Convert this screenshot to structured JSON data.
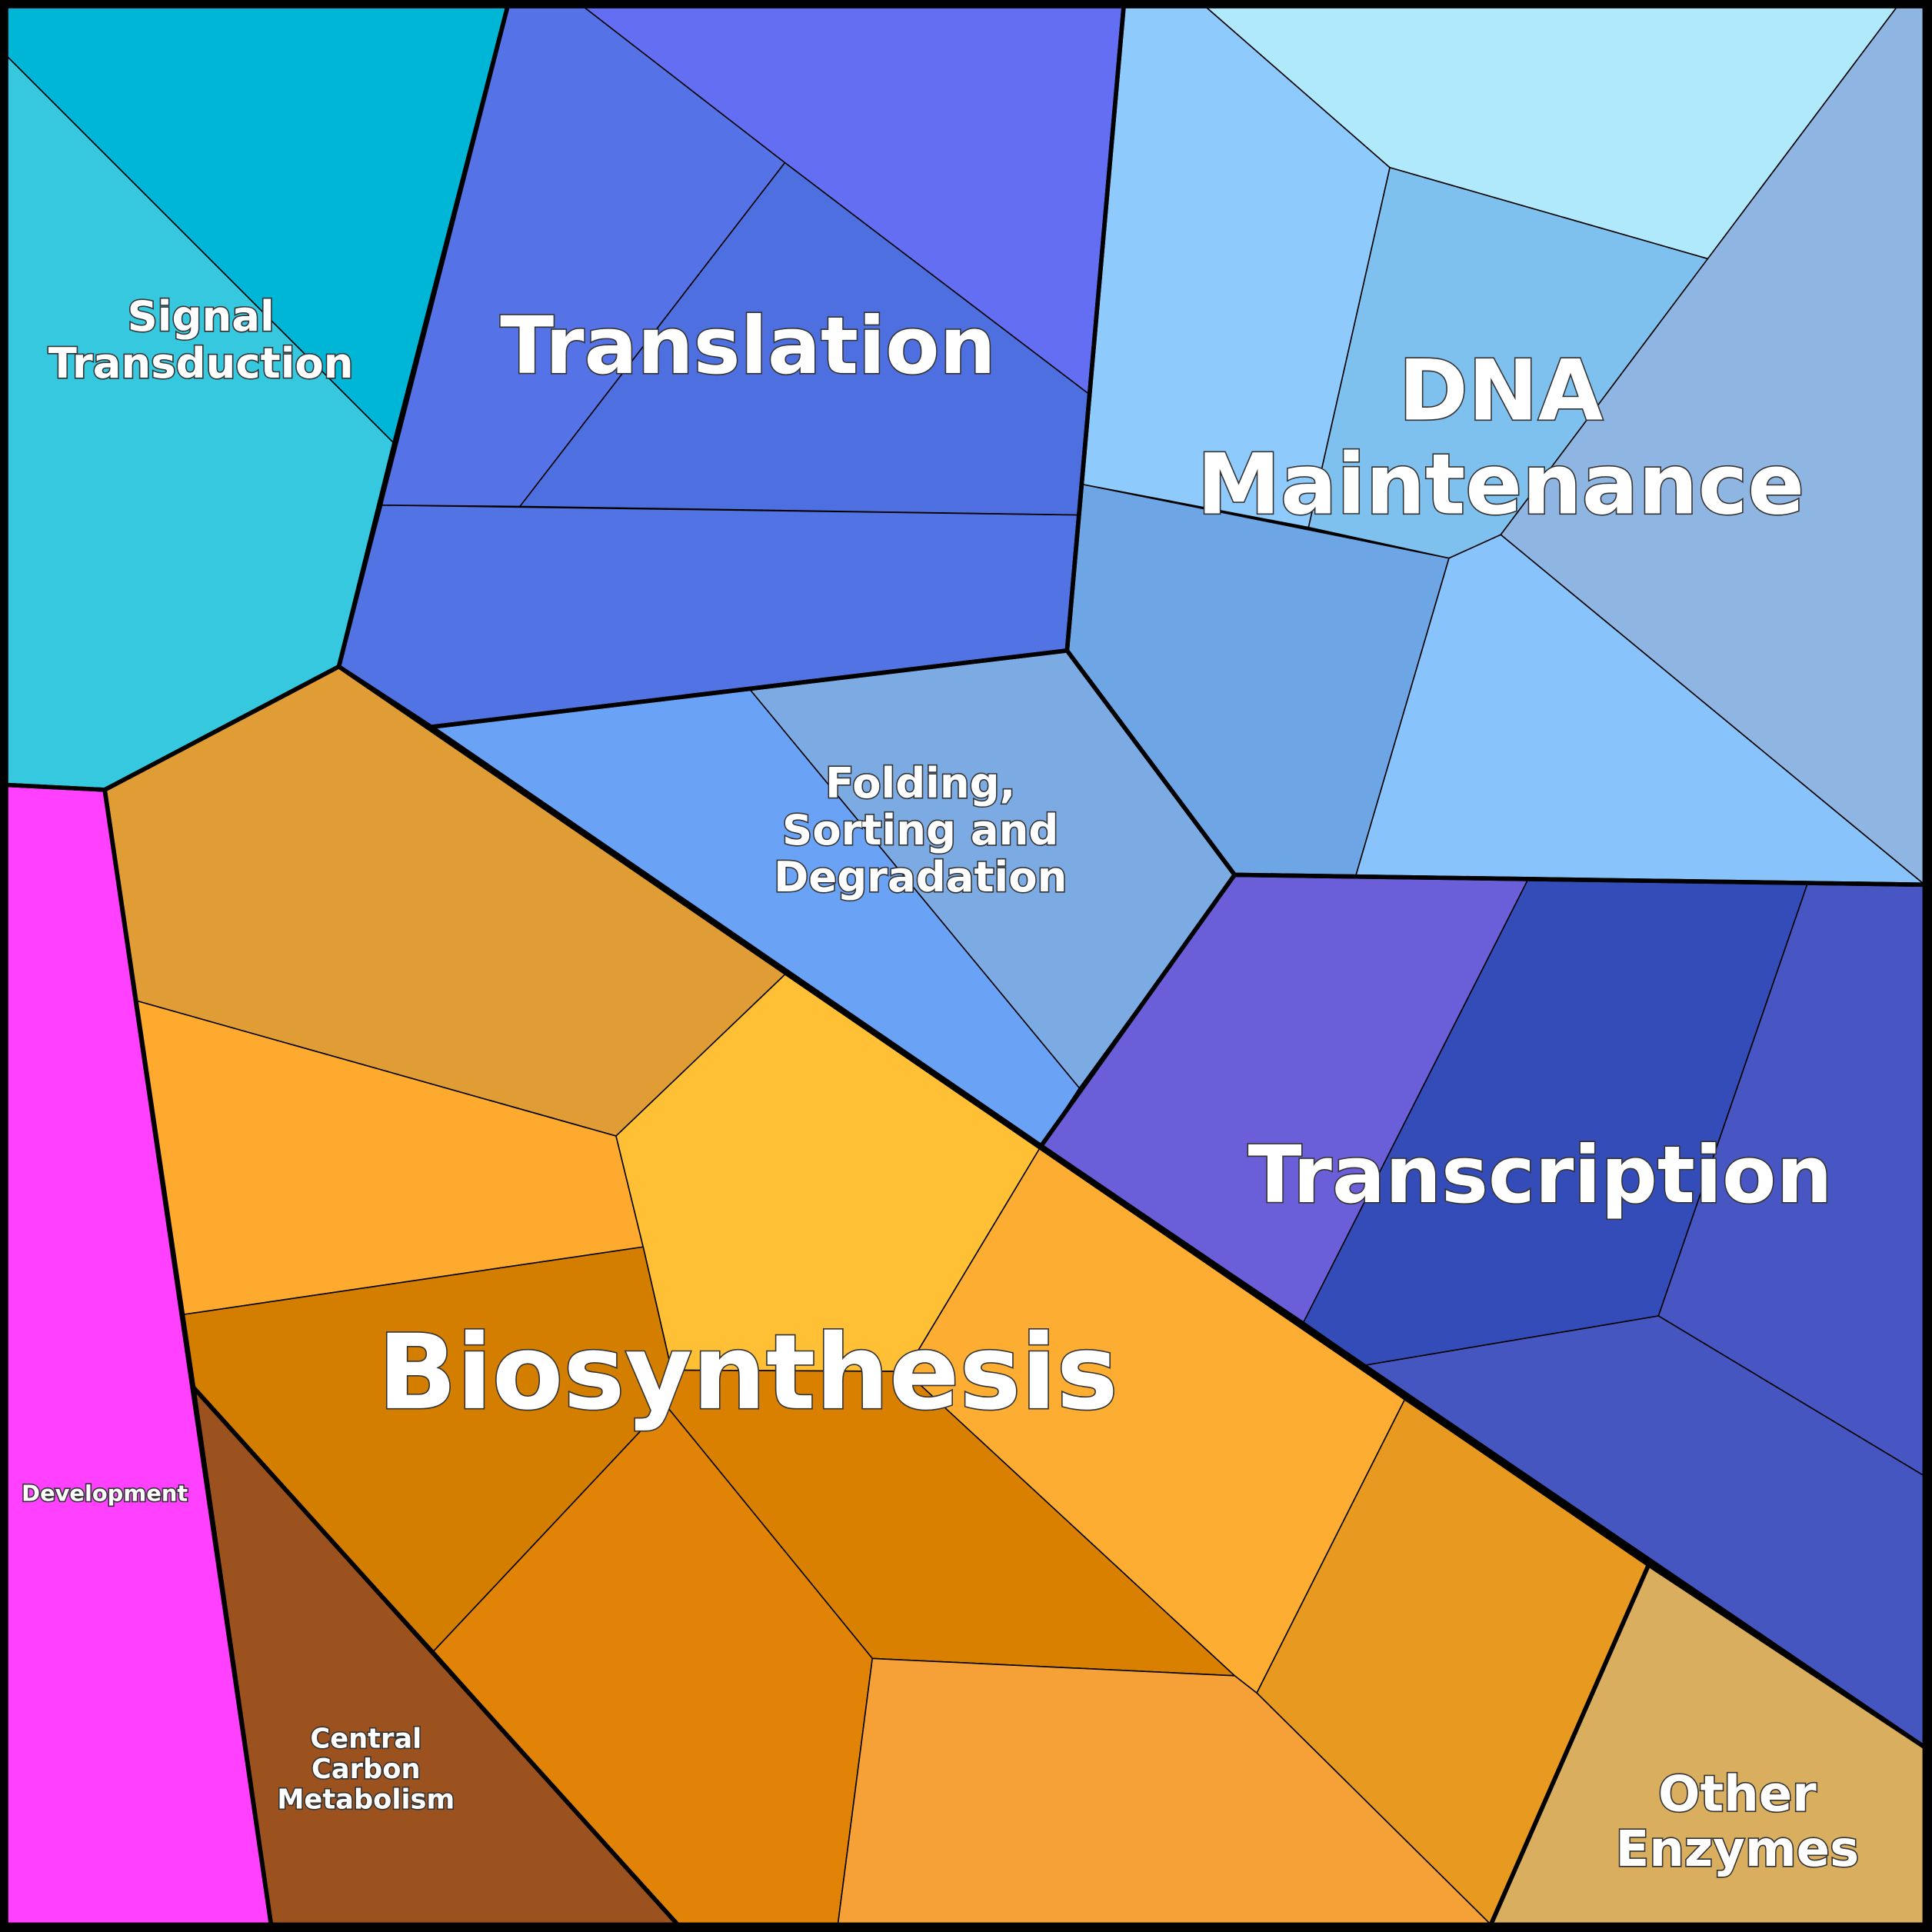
{
  "chart_data": {
    "type": "voronoi-treemap",
    "groups": [
      {
        "label": [
          "Signal",
          "Transduction"
        ]
      },
      {
        "label": [
          "Translation"
        ]
      },
      {
        "label": [
          "DNA",
          "Maintenance"
        ]
      },
      {
        "label": [
          "Folding,",
          "Sorting and",
          "Degradation"
        ]
      },
      {
        "label": [
          "Transcription"
        ]
      },
      {
        "label": [
          "Biosynthesis"
        ]
      },
      {
        "label": [
          "Development"
        ]
      },
      {
        "label": [
          "Central",
          "Carbon",
          "Metabolism"
        ]
      },
      {
        "label": [
          "Other",
          "Enzymes"
        ]
      }
    ]
  }
}
